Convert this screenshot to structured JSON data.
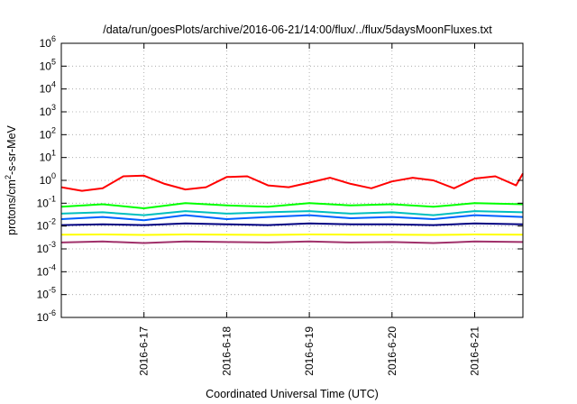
{
  "chart_data": {
    "type": "line",
    "title": "/data/run/goesPlots/archive/2016-06-21/14:00/flux/../flux/5daysMoonFluxes.txt",
    "xlabel": "Coordinated Universal Time (UTC)",
    "ylabel": "protons/cm2-s-sr-MeV",
    "ylabel_base": "protons/cm",
    "ylabel_sup": "2",
    "ylabel_rest": "-s-sr-MeV",
    "yscale": "log",
    "ylim": [
      1e-06,
      1000000.0
    ],
    "xlim": [
      "2016-06-16 00:00",
      "2016-06-21 14:00"
    ],
    "grid": true,
    "y_ticks": [
      {
        "value": 1e-06,
        "base": "10",
        "exp": "-6"
      },
      {
        "value": 1e-05,
        "base": "10",
        "exp": "-5"
      },
      {
        "value": 0.0001,
        "base": "10",
        "exp": "-4"
      },
      {
        "value": 0.001,
        "base": "10",
        "exp": "-3"
      },
      {
        "value": 0.01,
        "base": "10",
        "exp": "-2"
      },
      {
        "value": 0.1,
        "base": "10",
        "exp": "-1"
      },
      {
        "value": 1,
        "base": "10",
        "exp": "0"
      },
      {
        "value": 10,
        "base": "10",
        "exp": "1"
      },
      {
        "value": 100,
        "base": "10",
        "exp": "2"
      },
      {
        "value": 1000,
        "base": "10",
        "exp": "3"
      },
      {
        "value": 10000,
        "base": "10",
        "exp": "4"
      },
      {
        "value": 100000,
        "base": "10",
        "exp": "5"
      },
      {
        "value": 1000000,
        "base": "10",
        "exp": "6"
      }
    ],
    "x_ticks": [
      {
        "date": "2016-06-17 00:00",
        "label": "2016-6-17"
      },
      {
        "date": "2016-06-18 00:00",
        "label": "2016-6-18"
      },
      {
        "date": "2016-06-19 00:00",
        "label": "2016-6-19"
      },
      {
        "date": "2016-06-20 00:00",
        "label": "2016-6-20"
      },
      {
        "date": "2016-06-21 00:00",
        "label": "2016-6-21"
      }
    ],
    "series": [
      {
        "color": "#ff0000",
        "x": [
          "2016-06-16 00:00",
          "2016-06-16 06:00",
          "2016-06-16 12:00",
          "2016-06-16 18:00",
          "2016-06-17 00:00",
          "2016-06-17 06:00",
          "2016-06-17 12:00",
          "2016-06-17 18:00",
          "2016-06-18 00:00",
          "2016-06-18 06:00",
          "2016-06-18 12:00",
          "2016-06-18 18:00",
          "2016-06-19 00:00",
          "2016-06-19 06:00",
          "2016-06-19 12:00",
          "2016-06-19 18:00",
          "2016-06-20 00:00",
          "2016-06-20 06:00",
          "2016-06-20 12:00",
          "2016-06-20 18:00",
          "2016-06-21 00:00",
          "2016-06-21 06:00",
          "2016-06-21 12:00",
          "2016-06-21 14:00"
        ],
        "y": [
          0.5,
          0.35,
          0.45,
          1.5,
          1.6,
          0.7,
          0.4,
          0.5,
          1.4,
          1.5,
          0.6,
          0.5,
          0.8,
          1.3,
          0.7,
          0.45,
          0.9,
          1.3,
          1.0,
          0.45,
          1.2,
          1.5,
          0.6,
          2.0
        ]
      },
      {
        "color": "#00ff00",
        "x": [
          "2016-06-16 00:00",
          "2016-06-16 12:00",
          "2016-06-17 00:00",
          "2016-06-17 12:00",
          "2016-06-18 00:00",
          "2016-06-18 12:00",
          "2016-06-19 00:00",
          "2016-06-19 12:00",
          "2016-06-20 00:00",
          "2016-06-20 12:00",
          "2016-06-21 00:00",
          "2016-06-21 14:00"
        ],
        "y": [
          0.07,
          0.09,
          0.06,
          0.1,
          0.08,
          0.07,
          0.1,
          0.08,
          0.09,
          0.07,
          0.1,
          0.09
        ]
      },
      {
        "color": "#00bfbf",
        "x": [
          "2016-06-16 00:00",
          "2016-06-16 12:00",
          "2016-06-17 00:00",
          "2016-06-17 12:00",
          "2016-06-18 00:00",
          "2016-06-18 12:00",
          "2016-06-19 00:00",
          "2016-06-19 12:00",
          "2016-06-20 00:00",
          "2016-06-20 12:00",
          "2016-06-21 00:00",
          "2016-06-21 14:00"
        ],
        "y": [
          0.035,
          0.04,
          0.03,
          0.045,
          0.035,
          0.04,
          0.045,
          0.035,
          0.04,
          0.03,
          0.045,
          0.04
        ]
      },
      {
        "color": "#0060ff",
        "x": [
          "2016-06-16 00:00",
          "2016-06-16 12:00",
          "2016-06-17 00:00",
          "2016-06-17 12:00",
          "2016-06-18 00:00",
          "2016-06-18 12:00",
          "2016-06-19 00:00",
          "2016-06-19 12:00",
          "2016-06-20 00:00",
          "2016-06-20 12:00",
          "2016-06-21 00:00",
          "2016-06-21 14:00"
        ],
        "y": [
          0.02,
          0.025,
          0.018,
          0.03,
          0.02,
          0.025,
          0.03,
          0.022,
          0.025,
          0.02,
          0.03,
          0.025
        ]
      },
      {
        "color": "#000080",
        "x": [
          "2016-06-16 00:00",
          "2016-06-16 12:00",
          "2016-06-17 00:00",
          "2016-06-17 12:00",
          "2016-06-18 00:00",
          "2016-06-18 12:00",
          "2016-06-19 00:00",
          "2016-06-19 12:00",
          "2016-06-20 00:00",
          "2016-06-20 12:00",
          "2016-06-21 00:00",
          "2016-06-21 14:00"
        ],
        "y": [
          0.011,
          0.012,
          0.011,
          0.013,
          0.012,
          0.011,
          0.013,
          0.012,
          0.012,
          0.011,
          0.013,
          0.012
        ]
      },
      {
        "color": "#ffff00",
        "x": [
          "2016-06-16 00:00",
          "2016-06-16 12:00",
          "2016-06-17 00:00",
          "2016-06-17 12:00",
          "2016-06-18 00:00",
          "2016-06-18 12:00",
          "2016-06-19 00:00",
          "2016-06-19 12:00",
          "2016-06-20 00:00",
          "2016-06-20 12:00",
          "2016-06-21 00:00",
          "2016-06-21 14:00"
        ],
        "y": [
          0.0042,
          0.0043,
          0.0041,
          0.0043,
          0.0042,
          0.0041,
          0.0043,
          0.0042,
          0.0042,
          0.0041,
          0.0043,
          0.0042
        ]
      },
      {
        "color": "#a0306a",
        "x": [
          "2016-06-16 00:00",
          "2016-06-16 12:00",
          "2016-06-17 00:00",
          "2016-06-17 12:00",
          "2016-06-18 00:00",
          "2016-06-18 12:00",
          "2016-06-19 00:00",
          "2016-06-19 12:00",
          "2016-06-20 00:00",
          "2016-06-20 12:00",
          "2016-06-21 00:00",
          "2016-06-21 14:00"
        ],
        "y": [
          0.0019,
          0.0021,
          0.0018,
          0.0021,
          0.002,
          0.0019,
          0.0021,
          0.0019,
          0.002,
          0.0018,
          0.0021,
          0.002
        ]
      }
    ]
  }
}
